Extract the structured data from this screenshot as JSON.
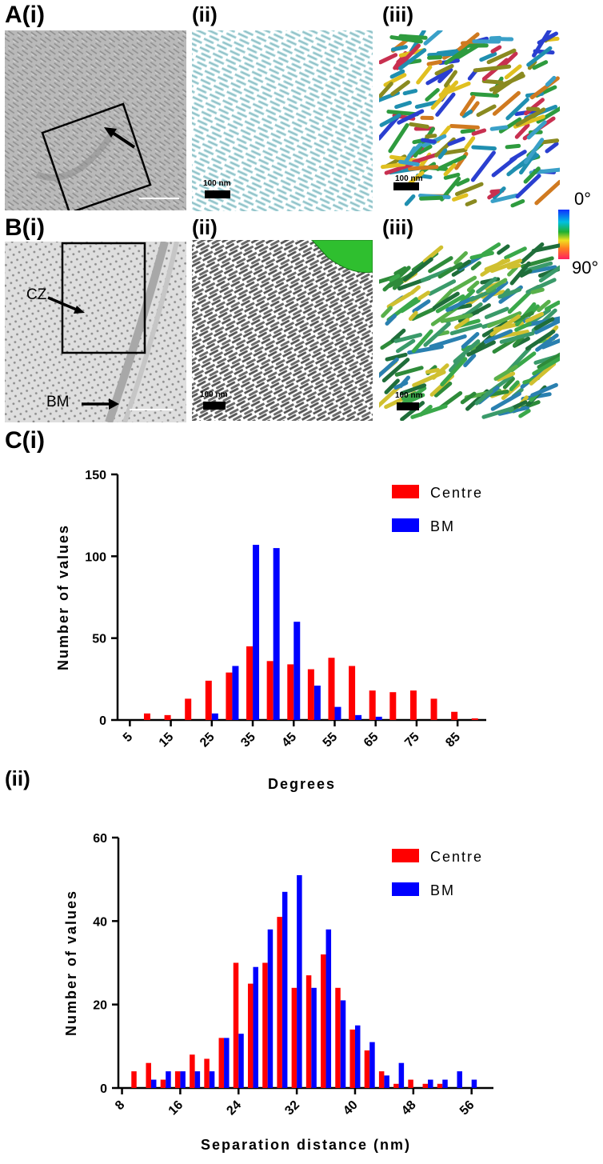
{
  "panels": {
    "A": {
      "label": "A(i)",
      "ii": "(ii)",
      "iii": "(iii)",
      "scale_ii": "100 nm",
      "scale_iii": "100 nm"
    },
    "B": {
      "label": "B(i)",
      "ii": "(ii)",
      "iii": "(iii)",
      "cz": "CZ",
      "bm": "BM",
      "scale_ii": "100 nm",
      "scale_iii": "100 nm"
    },
    "C": {
      "label_i": "C(i)",
      "label_ii": "(ii)"
    }
  },
  "colorbar": {
    "top": "0°",
    "bottom": "90°"
  },
  "colors": {
    "centre": "#ff0000",
    "bm": "#0000ff"
  },
  "chart_data": [
    {
      "type": "bar",
      "title": "",
      "xlabel": "Degrees",
      "ylabel": "Number of values",
      "ylim": [
        0,
        150
      ],
      "yticks": [
        0,
        50,
        100,
        150
      ],
      "xtick_labels": [
        "5",
        "15",
        "25",
        "35",
        "45",
        "55",
        "65",
        "75",
        "85"
      ],
      "categories": [
        5,
        10,
        15,
        20,
        25,
        30,
        35,
        40,
        45,
        50,
        55,
        60,
        65,
        70,
        75,
        80,
        85,
        90
      ],
      "legend": [
        "Centre",
        "BM"
      ],
      "series": [
        {
          "name": "Centre",
          "values": [
            0,
            4,
            3,
            13,
            24,
            29,
            45,
            36,
            34,
            31,
            38,
            33,
            18,
            17,
            18,
            13,
            5,
            1
          ]
        },
        {
          "name": "BM",
          "values": [
            0,
            0,
            0,
            0,
            4,
            33,
            107,
            105,
            60,
            21,
            8,
            3,
            2,
            0,
            0,
            0,
            0,
            0
          ]
        }
      ]
    },
    {
      "type": "bar",
      "title": "",
      "xlabel": "Separation distance (nm)",
      "ylabel": "Number of values",
      "ylim": [
        0,
        60
      ],
      "yticks": [
        0,
        20,
        40,
        60
      ],
      "xtick_labels": [
        "8",
        "16",
        "24",
        "32",
        "40",
        "48",
        "56"
      ],
      "categories": [
        10,
        12,
        14,
        16,
        18,
        20,
        22,
        24,
        26,
        28,
        30,
        32,
        34,
        36,
        38,
        40,
        42,
        44,
        46,
        48,
        50,
        52,
        54,
        56
      ],
      "legend": [
        "Centre",
        "BM"
      ],
      "series": [
        {
          "name": "Centre",
          "values": [
            4,
            6,
            2,
            4,
            8,
            7,
            12,
            30,
            25,
            30,
            41,
            24,
            27,
            32,
            24,
            14,
            9,
            4,
            1,
            2,
            1,
            1,
            0,
            0
          ]
        },
        {
          "name": "BM",
          "values": [
            0,
            2,
            4,
            4,
            4,
            4,
            12,
            13,
            29,
            38,
            47,
            51,
            24,
            38,
            21,
            15,
            11,
            3,
            6,
            0,
            2,
            2,
            4,
            2
          ]
        }
      ]
    }
  ]
}
